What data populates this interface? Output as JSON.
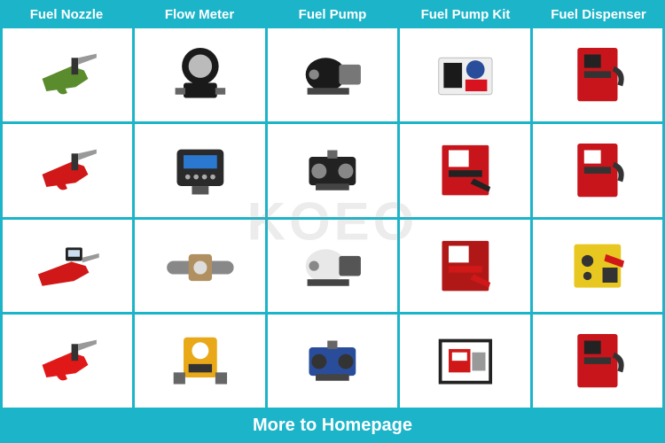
{
  "brand_colors": {
    "primary": "#1bb4c9",
    "cell_bg": "#ffffff",
    "header_text": "#ffffff"
  },
  "watermark": "KOEO",
  "columns": [
    {
      "label": "Fuel Nozzle"
    },
    {
      "label": "Flow Meter"
    },
    {
      "label": "Fuel Pump"
    },
    {
      "label": "Fuel Pump Kit"
    },
    {
      "label": "Fuel Dispenser"
    }
  ],
  "footer_label": "More to Homepage",
  "grid": {
    "rows": 4,
    "cols": 5,
    "cells": [
      {
        "name": "nozzle-green",
        "colors": [
          "#5a8c2e",
          "#333333"
        ],
        "shape": "nozzle"
      },
      {
        "name": "flowmeter-black-1",
        "colors": [
          "#1a1a1a",
          "#bbbbbb"
        ],
        "shape": "meter-round"
      },
      {
        "name": "fuelpump-black-1",
        "colors": [
          "#1a1a1a",
          "#777777"
        ],
        "shape": "pump-motor"
      },
      {
        "name": "pumpkit-multi",
        "colors": [
          "#d8121e",
          "#1a1a1a",
          "#2a4d9b"
        ],
        "shape": "kit-box"
      },
      {
        "name": "dispenser-red-1",
        "colors": [
          "#c8151b",
          "#222222"
        ],
        "shape": "dispenser"
      },
      {
        "name": "nozzle-red-1",
        "colors": [
          "#d01818",
          "#333333"
        ],
        "shape": "nozzle"
      },
      {
        "name": "flowmeter-digital",
        "colors": [
          "#2a2a2a",
          "#2a78d0"
        ],
        "shape": "meter-digital"
      },
      {
        "name": "fuelpump-black-2",
        "colors": [
          "#222222",
          "#888888"
        ],
        "shape": "pump-block"
      },
      {
        "name": "pumpkit-red-1",
        "colors": [
          "#c8151b",
          "#222222"
        ],
        "shape": "kit-panel"
      },
      {
        "name": "dispenser-red-2",
        "colors": [
          "#c8151b",
          "#ffffff"
        ],
        "shape": "dispenser"
      },
      {
        "name": "nozzle-red-meter",
        "colors": [
          "#d01818",
          "#222222"
        ],
        "shape": "nozzle-meter"
      },
      {
        "name": "flowmeter-inline",
        "colors": [
          "#888888",
          "#b09060"
        ],
        "shape": "meter-inline"
      },
      {
        "name": "fuelpump-white",
        "colors": [
          "#e8e8e8",
          "#555555"
        ],
        "shape": "pump-motor"
      },
      {
        "name": "pumpkit-red-2",
        "colors": [
          "#b01818",
          "#d01818"
        ],
        "shape": "kit-panel"
      },
      {
        "name": "dispenser-yellow",
        "colors": [
          "#e8c820",
          "#d01818"
        ],
        "shape": "dispenser-sq"
      },
      {
        "name": "nozzle-red-auto",
        "colors": [
          "#e01818",
          "#333333"
        ],
        "shape": "nozzle"
      },
      {
        "name": "flowmeter-yellow",
        "colors": [
          "#e8a818",
          "#333333"
        ],
        "shape": "meter-box"
      },
      {
        "name": "fuelpump-blue",
        "colors": [
          "#2a4d9b",
          "#333333"
        ],
        "shape": "pump-block"
      },
      {
        "name": "pumpkit-frame",
        "colors": [
          "#d01818",
          "#222222"
        ],
        "shape": "kit-frame"
      },
      {
        "name": "dispenser-red-3",
        "colors": [
          "#c8151b",
          "#555555"
        ],
        "shape": "dispenser"
      }
    ]
  }
}
